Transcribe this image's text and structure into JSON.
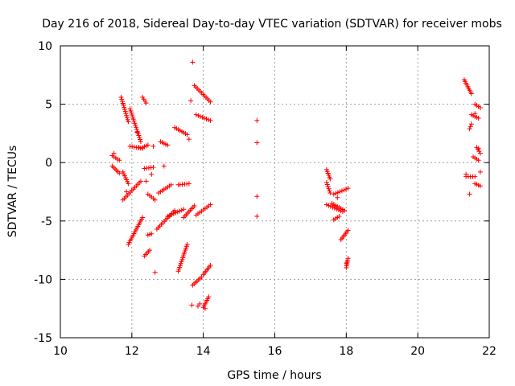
{
  "chart_data": {
    "type": "scatter",
    "title": "Day 216 of 2018, Sidereal Day-to-day VTEC variation (SDTVAR) for receiver mobs",
    "xlabel": "GPS time / hours",
    "ylabel": "SDTVAR / TECUs",
    "xlim": [
      10,
      22
    ],
    "ylim": [
      -15,
      10
    ],
    "xticks": [
      10,
      12,
      14,
      16,
      18,
      20,
      22
    ],
    "yticks": [
      -15,
      -10,
      -5,
      0,
      5,
      10
    ],
    "xtick_labels": [
      "10",
      "12",
      "14",
      "16",
      "18",
      "20",
      "22"
    ],
    "ytick_labels": [
      "-15",
      "-10",
      "-5",
      "0",
      "5",
      "10"
    ],
    "grid": true,
    "marker": "+",
    "color": "#ff0000",
    "series": [
      {
        "name": "SDTVAR",
        "segments": [
          [
            [
              11.45,
              0.6
            ],
            [
              11.65,
              0.2
            ]
          ],
          [
            [
              11.45,
              -0.3
            ],
            [
              11.65,
              -0.9
            ]
          ],
          [
            [
              11.7,
              5.6
            ],
            [
              11.9,
              3.5
            ]
          ],
          [
            [
              11.75,
              -0.8
            ],
            [
              11.9,
              -1.8
            ]
          ],
          [
            [
              11.75,
              -3.2
            ],
            [
              12.25,
              -1.6
            ]
          ],
          [
            [
              11.95,
              4.6
            ],
            [
              12.25,
              1.8
            ]
          ],
          [
            [
              11.95,
              1.4
            ],
            [
              12.3,
              1.2
            ]
          ],
          [
            [
              11.9,
              -7.0
            ],
            [
              12.3,
              -4.7
            ]
          ],
          [
            [
              12.3,
              1.3
            ],
            [
              12.45,
              1.5
            ]
          ],
          [
            [
              12.3,
              5.6
            ],
            [
              12.4,
              5.1
            ]
          ],
          [
            [
              12.35,
              -0.5
            ],
            [
              12.6,
              -0.4
            ]
          ],
          [
            [
              12.35,
              -8.0
            ],
            [
              12.5,
              -7.5
            ]
          ],
          [
            [
              12.45,
              -2.7
            ],
            [
              12.65,
              -3.2
            ]
          ],
          [
            [
              12.45,
              -6.2
            ],
            [
              12.55,
              -6.1
            ]
          ],
          [
            [
              12.7,
              -5.7
            ],
            [
              13.2,
              -4.1
            ]
          ],
          [
            [
              12.75,
              -2.6
            ],
            [
              13.1,
              -1.9
            ]
          ],
          [
            [
              12.8,
              1.8
            ],
            [
              13.0,
              1.5
            ]
          ],
          [
            [
              13.0,
              -4.6
            ],
            [
              13.45,
              -4.0
            ]
          ],
          [
            [
              13.2,
              3.0
            ],
            [
              13.55,
              2.4
            ]
          ],
          [
            [
              13.35,
              -1.9
            ],
            [
              13.6,
              -1.8
            ]
          ],
          [
            [
              13.3,
              -9.3
            ],
            [
              13.55,
              -7.0
            ]
          ],
          [
            [
              13.45,
              -4.7
            ],
            [
              13.75,
              -3.7
            ]
          ],
          [
            [
              13.75,
              6.6
            ],
            [
              14.2,
              5.2
            ]
          ],
          [
            [
              13.8,
              4.1
            ],
            [
              14.2,
              3.6
            ]
          ],
          [
            [
              13.8,
              -4.5
            ],
            [
              14.2,
              -3.6
            ]
          ],
          [
            [
              13.7,
              -10.5
            ],
            [
              13.95,
              -9.8
            ]
          ],
          [
            [
              14.0,
              -9.6
            ],
            [
              14.2,
              -8.8
            ]
          ],
          [
            [
              14.0,
              -12.4
            ],
            [
              14.15,
              -11.5
            ]
          ],
          [
            [
              17.45,
              -0.6
            ],
            [
              17.55,
              -1.4
            ]
          ],
          [
            [
              17.45,
              -1.7
            ],
            [
              17.55,
              -2.6
            ]
          ],
          [
            [
              17.45,
              -3.6
            ],
            [
              17.9,
              -4.2
            ]
          ],
          [
            [
              17.6,
              -3.5
            ],
            [
              17.95,
              -4.1
            ]
          ],
          [
            [
              17.65,
              -2.7
            ],
            [
              18.05,
              -2.2
            ]
          ],
          [
            [
              17.65,
              -4.9
            ],
            [
              17.8,
              -4.6
            ]
          ],
          [
            [
              17.85,
              -6.6
            ],
            [
              18.05,
              -5.8
            ]
          ],
          [
            [
              18.0,
              -9.0
            ],
            [
              18.05,
              -8.2
            ]
          ],
          [
            [
              21.3,
              7.1
            ],
            [
              21.5,
              5.9
            ]
          ],
          [
            [
              21.35,
              -1.2
            ],
            [
              21.6,
              -1.2
            ]
          ],
          [
            [
              21.45,
              2.9
            ],
            [
              21.5,
              3.3
            ]
          ],
          [
            [
              21.5,
              4.1
            ],
            [
              21.7,
              3.8
            ]
          ],
          [
            [
              21.55,
              0.5
            ],
            [
              21.7,
              0.2
            ]
          ],
          [
            [
              21.6,
              5.0
            ],
            [
              21.75,
              4.7
            ]
          ],
          [
            [
              21.65,
              1.3
            ],
            [
              21.75,
              0.8
            ]
          ],
          [
            [
              21.6,
              -1.8
            ],
            [
              21.75,
              -2.0
            ]
          ]
        ],
        "points": [
          [
            11.5,
            0.8
          ],
          [
            11.85,
            -2.5
          ],
          [
            12.15,
            2.6
          ],
          [
            12.2,
            1.3
          ],
          [
            12.4,
            -1.6
          ],
          [
            12.55,
            -1.0
          ],
          [
            12.65,
            -9.4
          ],
          [
            12.6,
            1.4
          ],
          [
            12.9,
            -0.3
          ],
          [
            13.3,
            -1.9
          ],
          [
            13.6,
            2.0
          ],
          [
            13.65,
            5.3
          ],
          [
            13.7,
            8.6
          ],
          [
            13.68,
            -12.2
          ],
          [
            13.85,
            -12.3
          ],
          [
            13.9,
            -12.1
          ],
          [
            14.05,
            -12.5
          ],
          [
            15.5,
            3.6
          ],
          [
            15.5,
            1.7
          ],
          [
            15.5,
            -2.9
          ],
          [
            15.5,
            -4.6
          ],
          [
            17.75,
            -3.0
          ],
          [
            18.0,
            -8.6
          ],
          [
            21.35,
            -1.0
          ],
          [
            21.45,
            -2.7
          ],
          [
            21.6,
            4.2
          ],
          [
            21.7,
            1.2
          ],
          [
            21.75,
            -0.8
          ]
        ]
      }
    ]
  }
}
